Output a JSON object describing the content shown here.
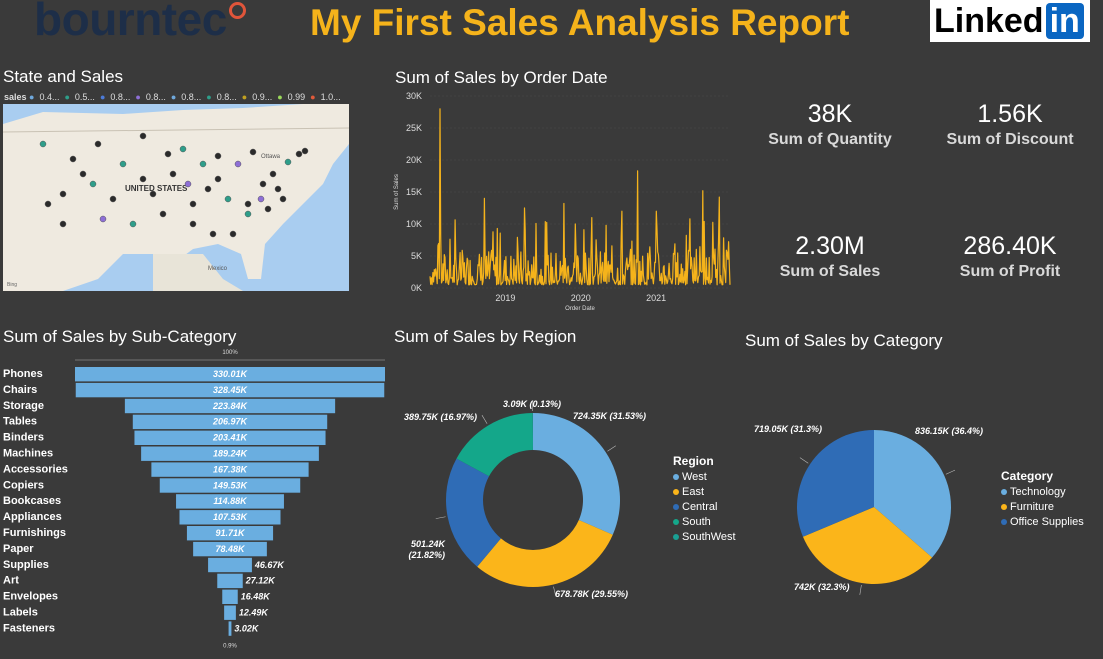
{
  "header": {
    "brand_logo": "bourntec",
    "report_title": "My First Sales Analysis Report",
    "linkedin_text": "Linked",
    "linkedin_in": "in"
  },
  "map": {
    "title": "State and Sales",
    "legend_label": "sales",
    "legend_items": [
      "0.4...",
      "0.5...",
      "0.8...",
      "0.8...",
      "0.8...",
      "0.8...",
      "0.9...",
      "0.99",
      "1.0..."
    ],
    "legend_colors": [
      "#6fa8dc",
      "#2e9e8a",
      "#4c7bd9",
      "#8e6fd6",
      "#6fa8dc",
      "#2e9e8a",
      "#c0a020",
      "#9ad85a",
      "#e05a3a"
    ],
    "country_label": "UNITED STATES",
    "place_labels": [
      "Ottawa",
      "Mexico"
    ],
    "attribution": "Bing"
  },
  "kpis": [
    {
      "value": "38K",
      "label": "Sum of Quantity"
    },
    {
      "value": "1.56K",
      "label": "Sum of Discount"
    },
    {
      "value": "2.30M",
      "label": "Sum of Sales"
    },
    {
      "value": "286.40K",
      "label": "Sum of Profit"
    }
  ],
  "colors": {
    "bar_blue": "#6aaee0",
    "line_gold": "#f5b31b",
    "background": "#3a3a3a",
    "west": "#6aaee0",
    "east": "#fbb51a",
    "central": "#2f6cb6",
    "south": "#14a78a",
    "southwest": "#1aa094",
    "technology": "#6aaee0",
    "furniture": "#fbb51a",
    "office": "#2f6cb6"
  },
  "chart_data": [
    {
      "id": "sales_by_order_date",
      "type": "line",
      "title": "Sum of Sales by Order Date",
      "xlabel": "Order Date",
      "ylabel": "Sum of Sales",
      "x_ticks": [
        "2019",
        "2020",
        "2021"
      ],
      "y_ticks": [
        "0K",
        "5K",
        "10K",
        "15K",
        "20K",
        "25K",
        "30K"
      ],
      "ylim": [
        0,
        30000
      ],
      "x_range": [
        "2018-01",
        "2021-12"
      ],
      "peaks": [
        {
          "date": "2018.13",
          "value": 28000
        },
        {
          "date": "2018.72",
          "value": 14000
        },
        {
          "date": "2019.25",
          "value": 12500
        },
        {
          "date": "2019.78",
          "value": 13200
        },
        {
          "date": "2020.15",
          "value": 11000
        },
        {
          "date": "2020.55",
          "value": 12000
        },
        {
          "date": "2020.75",
          "value": 18300
        },
        {
          "date": "2021.0",
          "value": 12000
        },
        {
          "date": "2021.45",
          "value": 10800
        },
        {
          "date": "2021.62",
          "value": 15200
        },
        {
          "date": "2021.84",
          "value": 14200
        }
      ],
      "baseline_range": [
        500,
        6000
      ]
    },
    {
      "id": "sales_by_subcategory",
      "type": "bar",
      "orientation": "horizontal-funnel",
      "title": "Sum of Sales by Sub-Category",
      "top_label": "100%",
      "bottom_label": "0.9%",
      "categories": [
        "Phones",
        "Chairs",
        "Storage",
        "Tables",
        "Binders",
        "Machines",
        "Accessories",
        "Copiers",
        "Bookcases",
        "Appliances",
        "Furnishings",
        "Paper",
        "Supplies",
        "Art",
        "Envelopes",
        "Labels",
        "Fasteners"
      ],
      "values": [
        330010,
        328450,
        223840,
        206970,
        203410,
        189240,
        167380,
        149530,
        114880,
        107530,
        91710,
        78480,
        46670,
        27120,
        16480,
        12490,
        3020
      ],
      "value_labels": [
        "330.01K",
        "328.45K",
        "223.84K",
        "206.97K",
        "203.41K",
        "189.24K",
        "167.38K",
        "149.53K",
        "114.88K",
        "107.53K",
        "91.71K",
        "78.48K",
        "46.67K",
        "27.12K",
        "16.48K",
        "12.49K",
        "3.02K"
      ]
    },
    {
      "id": "sales_by_region",
      "type": "pie",
      "variant": "donut",
      "title": "Sum of Sales by Region",
      "legend_title": "Region",
      "legend": [
        "West",
        "East",
        "Central",
        "South",
        "SouthWest"
      ],
      "slices": [
        {
          "name": "West",
          "value": 724350,
          "label": "724.35K (31.53%)"
        },
        {
          "name": "East",
          "value": 678780,
          "label": "678.78K (29.55%)"
        },
        {
          "name": "Central",
          "value": 501240,
          "label": "501.24K (21.82%)"
        },
        {
          "name": "South",
          "value": 389750,
          "label": "389.75K (16.97%)"
        },
        {
          "name": "SouthWest",
          "value": 3090,
          "label": "3.09K (0.13%)"
        }
      ]
    },
    {
      "id": "sales_by_category",
      "type": "pie",
      "title": "Sum of Sales by Category",
      "legend_title": "Category",
      "legend": [
        "Technology",
        "Furniture",
        "Office Supplies"
      ],
      "slices": [
        {
          "name": "Technology",
          "value": 836150,
          "label": "836.15K (36.4%)"
        },
        {
          "name": "Furniture",
          "value": 742000,
          "label": "742K (32.3%)"
        },
        {
          "name": "Office Supplies",
          "value": 719050,
          "label": "719.05K (31.3%)"
        }
      ]
    }
  ]
}
